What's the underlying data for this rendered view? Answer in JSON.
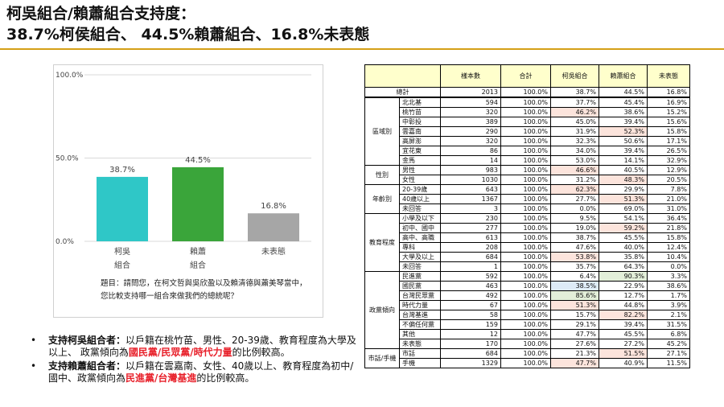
{
  "title": {
    "line1": "柯吳組合/賴蕭組合支持度：",
    "line2": "38.7%柯侯組合、 44.5%賴蕭組合、16.8%未表態"
  },
  "chart_data": {
    "type": "bar",
    "categories": [
      "柯吳組合",
      "賴蕭組合",
      "未表態"
    ],
    "category_lines": [
      [
        "柯吳",
        "組合"
      ],
      [
        "賴蕭",
        "組合"
      ],
      [
        "未表態",
        ""
      ]
    ],
    "values": [
      38.7,
      44.5,
      16.8
    ],
    "value_labels": [
      "38.7%",
      "44.5%",
      "16.8%"
    ],
    "colors": [
      "#2fc7c7",
      "#3aa53a",
      "#a6a6a6"
    ],
    "yticks": [
      "0.0%",
      "50.0%",
      "100.0%"
    ],
    "ylim": [
      0,
      100
    ],
    "grid": true
  },
  "question": {
    "line1": "題目：請問您，在柯文哲與吳欣盈以及賴清德與蕭美琴當中，",
    "line2": "您比較支持哪一組合來做我們的總統呢？"
  },
  "bullets": [
    {
      "dot": "•",
      "lead": "支持柯吳組合者：",
      "text": "以戶籍在桃竹苗、男性、20-39歲、教育程度為大學及以上、 政黨傾向為",
      "highlight": "國民黨/民眾黨/時代力量",
      "tail": "的比例較高。"
    },
    {
      "dot": "•",
      "lead": "支持賴蕭組合者：",
      "text": "以戶籍在雲嘉南、女性、40歲以上、教育程度為初中/國中、政黨傾向為",
      "highlight": "民進黨/台灣基進",
      "tail": "的比例較高。"
    }
  ],
  "table": {
    "headers": [
      "",
      "",
      "樣本數",
      "合計",
      "柯吳組合",
      "賴蕭組合",
      "未表態"
    ],
    "total": {
      "label": "總計",
      "n": "2013",
      "sum": "100.0%",
      "a": "38.7%",
      "b": "44.5%",
      "c": "16.8%"
    },
    "groups": [
      {
        "name": "區域別",
        "rows": [
          {
            "sub": "北北基",
            "n": "594",
            "sum": "100.0%",
            "a": "37.7%",
            "b": "45.4%",
            "c": "16.9%",
            "hl": [
              "",
              "",
              ""
            ]
          },
          {
            "sub": "桃竹苗",
            "n": "320",
            "sum": "100.0%",
            "a": "46.2%",
            "b": "38.6%",
            "c": "15.2%",
            "hl": [
              "red",
              "",
              ""
            ]
          },
          {
            "sub": "中彰投",
            "n": "389",
            "sum": "100.0%",
            "a": "45.0%",
            "b": "39.4%",
            "c": "15.6%",
            "hl": [
              "",
              "",
              ""
            ]
          },
          {
            "sub": "雲嘉南",
            "n": "290",
            "sum": "100.0%",
            "a": "31.9%",
            "b": "52.3%",
            "c": "15.8%",
            "hl": [
              "",
              "red",
              ""
            ]
          },
          {
            "sub": "高屏澎",
            "n": "320",
            "sum": "100.0%",
            "a": "32.3%",
            "b": "50.6%",
            "c": "17.1%",
            "hl": [
              "",
              "",
              ""
            ]
          },
          {
            "sub": "宜花東",
            "n": "86",
            "sum": "100.0%",
            "a": "34.0%",
            "b": "39.4%",
            "c": "26.5%",
            "hl": [
              "",
              "",
              ""
            ]
          },
          {
            "sub": "金馬",
            "n": "14",
            "sum": "100.0%",
            "a": "53.0%",
            "b": "14.1%",
            "c": "32.9%",
            "hl": [
              "",
              "",
              ""
            ]
          }
        ]
      },
      {
        "name": "性別",
        "rows": [
          {
            "sub": "男性",
            "n": "983",
            "sum": "100.0%",
            "a": "46.6%",
            "b": "40.5%",
            "c": "12.9%",
            "hl": [
              "red",
              "",
              ""
            ]
          },
          {
            "sub": "女性",
            "n": "1030",
            "sum": "100.0%",
            "a": "31.2%",
            "b": "48.3%",
            "c": "20.5%",
            "hl": [
              "",
              "red",
              ""
            ]
          }
        ]
      },
      {
        "name": "年齡別",
        "rows": [
          {
            "sub": "20-39歲",
            "n": "643",
            "sum": "100.0%",
            "a": "62.3%",
            "b": "29.9%",
            "c": "7.8%",
            "hl": [
              "red",
              "",
              ""
            ]
          },
          {
            "sub": "40歲以上",
            "n": "1367",
            "sum": "100.0%",
            "a": "27.7%",
            "b": "51.3%",
            "c": "21.0%",
            "hl": [
              "",
              "red",
              ""
            ]
          },
          {
            "sub": "未回答",
            "n": "3",
            "sum": "100.0%",
            "a": "0.0%",
            "b": "69.0%",
            "c": "31.0%",
            "hl": [
              "",
              "",
              ""
            ]
          }
        ]
      },
      {
        "name": "教育程度",
        "rows": [
          {
            "sub": "小學及以下",
            "n": "230",
            "sum": "100.0%",
            "a": "9.5%",
            "b": "54.1%",
            "c": "36.4%",
            "hl": [
              "",
              "",
              ""
            ]
          },
          {
            "sub": "初中、國中",
            "n": "277",
            "sum": "100.0%",
            "a": "19.0%",
            "b": "59.2%",
            "c": "21.8%",
            "hl": [
              "",
              "red",
              ""
            ]
          },
          {
            "sub": "高中、高職",
            "n": "613",
            "sum": "100.0%",
            "a": "38.7%",
            "b": "45.5%",
            "c": "15.8%",
            "hl": [
              "",
              "",
              ""
            ]
          },
          {
            "sub": "專科",
            "n": "208",
            "sum": "100.0%",
            "a": "47.6%",
            "b": "40.0%",
            "c": "12.4%",
            "hl": [
              "",
              "",
              ""
            ]
          },
          {
            "sub": "大學及以上",
            "n": "684",
            "sum": "100.0%",
            "a": "53.8%",
            "b": "35.8%",
            "c": "10.4%",
            "hl": [
              "red",
              "",
              ""
            ]
          },
          {
            "sub": "未回答",
            "n": "1",
            "sum": "100.0%",
            "a": "35.7%",
            "b": "64.3%",
            "c": "0.0%",
            "hl": [
              "",
              "",
              ""
            ]
          }
        ]
      },
      {
        "name": "政黨傾向",
        "rows": [
          {
            "sub": "民進黨",
            "n": "592",
            "sum": "100.0%",
            "a": "6.4%",
            "b": "90.3%",
            "c": "3.3%",
            "hl": [
              "",
              "green",
              ""
            ]
          },
          {
            "sub": "國民黨",
            "n": "463",
            "sum": "100.0%",
            "a": "38.5%",
            "b": "22.9%",
            "c": "38.6%",
            "hl": [
              "blue",
              "",
              ""
            ]
          },
          {
            "sub": "台灣民眾黨",
            "n": "492",
            "sum": "100.0%",
            "a": "85.6%",
            "b": "12.7%",
            "c": "1.7%",
            "hl": [
              "green",
              "",
              ""
            ]
          },
          {
            "sub": "時代力量",
            "n": "67",
            "sum": "100.0%",
            "a": "51.3%",
            "b": "44.8%",
            "c": "3.9%",
            "hl": [
              "red",
              "",
              ""
            ]
          },
          {
            "sub": "台灣基進",
            "n": "58",
            "sum": "100.0%",
            "a": "15.7%",
            "b": "82.2%",
            "c": "2.1%",
            "hl": [
              "",
              "red",
              ""
            ]
          },
          {
            "sub": "不偏任何黨",
            "n": "159",
            "sum": "100.0%",
            "a": "29.1%",
            "b": "39.4%",
            "c": "31.5%",
            "hl": [
              "",
              "",
              ""
            ]
          },
          {
            "sub": "其他",
            "n": "12",
            "sum": "100.0%",
            "a": "47.7%",
            "b": "45.5%",
            "c": "6.8%",
            "hl": [
              "",
              "",
              ""
            ]
          },
          {
            "sub": "未表態",
            "n": "170",
            "sum": "100.0%",
            "a": "27.6%",
            "b": "27.2%",
            "c": "45.2%",
            "hl": [
              "",
              "",
              ""
            ]
          }
        ]
      },
      {
        "name": "市話/手機",
        "rows": [
          {
            "sub": "市話",
            "n": "684",
            "sum": "100.0%",
            "a": "21.3%",
            "b": "51.5%",
            "c": "27.1%",
            "hl": [
              "",
              "red",
              ""
            ]
          },
          {
            "sub": "手機",
            "n": "1329",
            "sum": "100.0%",
            "a": "47.7%",
            "b": "40.9%",
            "c": "11.5%",
            "hl": [
              "red",
              "",
              ""
            ]
          }
        ]
      }
    ]
  }
}
